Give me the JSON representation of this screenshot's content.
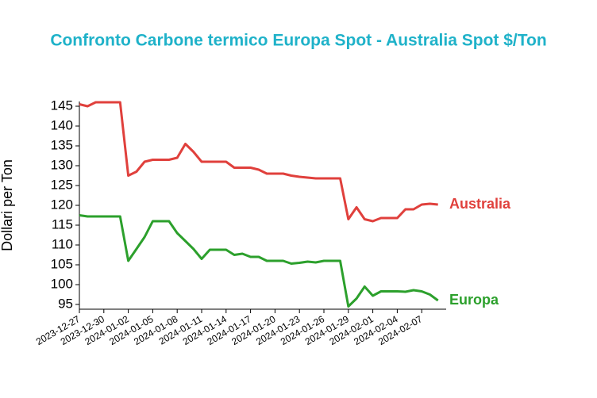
{
  "chart_data": {
    "type": "line",
    "title": "Confronto Carbone termico Europa Spot - Australia Spot $/Ton",
    "y_label": "Dollari per Ton",
    "x": [
      "2023-12-27",
      "2023-12-28",
      "2023-12-29",
      "2023-12-30",
      "2023-12-31",
      "2024-01-01",
      "2024-01-02",
      "2024-01-03",
      "2024-01-04",
      "2024-01-05",
      "2024-01-06",
      "2024-01-07",
      "2024-01-08",
      "2024-01-09",
      "2024-01-10",
      "2024-01-11",
      "2024-01-12",
      "2024-01-13",
      "2024-01-14",
      "2024-01-15",
      "2024-01-16",
      "2024-01-17",
      "2024-01-18",
      "2024-01-19",
      "2024-01-20",
      "2024-01-21",
      "2024-01-22",
      "2024-01-23",
      "2024-01-24",
      "2024-01-25",
      "2024-01-26",
      "2024-01-27",
      "2024-01-28",
      "2024-01-29",
      "2024-01-30",
      "2024-01-31",
      "2024-02-01",
      "2024-02-02",
      "2024-02-03",
      "2024-02-04",
      "2024-02-05",
      "2024-02-06",
      "2024-02-07",
      "2024-02-08",
      "2024-02-09"
    ],
    "series": [
      {
        "name": "Australia",
        "color": "#e0403c",
        "values": [
          145.5,
          145,
          146,
          146,
          146,
          146,
          127.5,
          128.5,
          131,
          131.5,
          131.5,
          131.5,
          132,
          135.5,
          133.5,
          131,
          131,
          131,
          131,
          129.5,
          129.5,
          129.5,
          129,
          128,
          128,
          128,
          127.5,
          127.2,
          127,
          126.8,
          126.8,
          126.8,
          126.8,
          116.5,
          119.5,
          116.5,
          116,
          116.8,
          116.8,
          116.8,
          119,
          119,
          120.2,
          120.4,
          120.2
        ]
      },
      {
        "name": "Europa",
        "color": "#2ca02c",
        "values": [
          117.5,
          117.2,
          117.2,
          117.2,
          117.2,
          117.2,
          106,
          109,
          112,
          116,
          116,
          116,
          113,
          111,
          109,
          106.5,
          108.8,
          108.8,
          108.8,
          107.5,
          107.8,
          107,
          107,
          106,
          106,
          106,
          105.3,
          105.5,
          105.8,
          105.6,
          106,
          106,
          106,
          94.5,
          96.5,
          99.5,
          97.2,
          98.3,
          98.3,
          98.3,
          98.2,
          98.6,
          98.3,
          97.5,
          96
        ]
      }
    ],
    "xlim": [
      "2023-12-27",
      "2024-02-10"
    ],
    "xticks": [
      "2023-12-27",
      "2023-12-30",
      "2024-01-02",
      "2024-01-05",
      "2024-01-08",
      "2024-01-11",
      "2024-01-14",
      "2024-01-17",
      "2024-01-20",
      "2024-01-23",
      "2024-01-26",
      "2024-01-29",
      "2024-02-01",
      "2024-02-04",
      "2024-02-07"
    ],
    "ylim": [
      93.8,
      146.2
    ],
    "yticks": [
      95,
      100,
      105,
      110,
      115,
      120,
      125,
      130,
      135,
      140,
      145
    ]
  }
}
